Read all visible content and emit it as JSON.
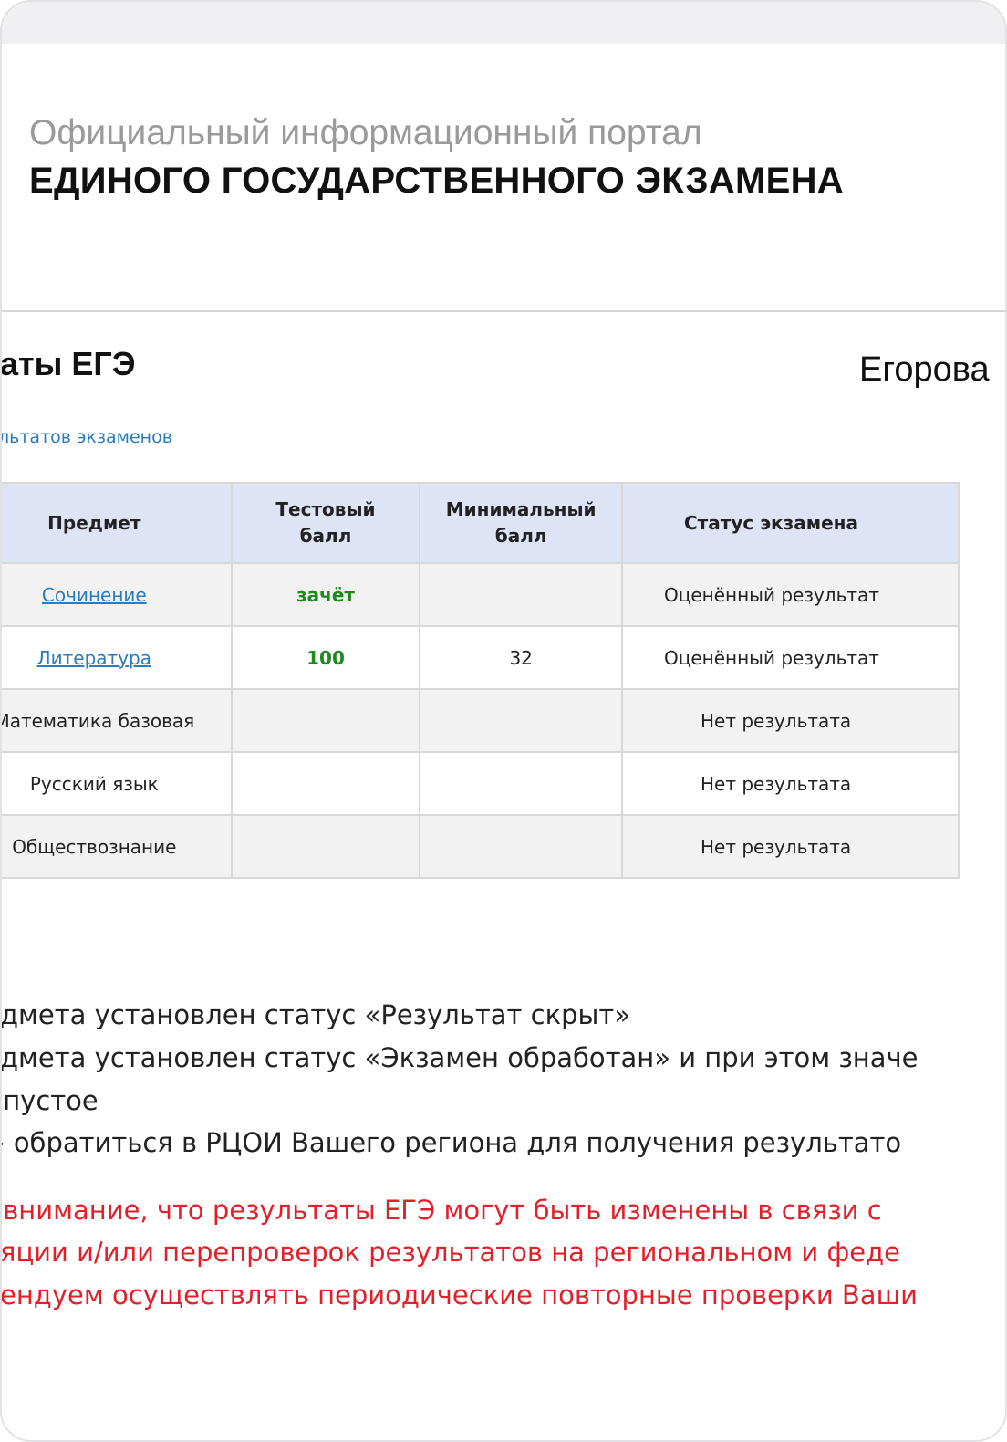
{
  "header": {
    "subtitle": "Официальный информационный портал",
    "title": "ЕДИНОГО ГОСУДАРСТВЕННОГО ЭКЗАМЕНА"
  },
  "page": {
    "title": "аты ЕГЭ",
    "user_name": "Егорова",
    "link": "льтатов экзаменов"
  },
  "table": {
    "headers": [
      "Предмет",
      "Тестовый балл",
      "Минимальный балл",
      "Статус экзамена"
    ],
    "rows": [
      {
        "subject": "Сочинение",
        "is_link": true,
        "score": "зачёт",
        "min": "",
        "status": "Оценённый результат"
      },
      {
        "subject": "Литература",
        "is_link": true,
        "score": "100",
        "min": "32",
        "status": "Оценённый результат"
      },
      {
        "subject": "Математика базовая",
        "is_link": false,
        "score": "",
        "min": "",
        "status": "Нет результата"
      },
      {
        "subject": "Русский язык",
        "is_link": false,
        "score": "",
        "min": "",
        "status": "Нет результата"
      },
      {
        "subject": "Обществознание",
        "is_link": false,
        "score": "",
        "min": "",
        "status": "Нет результата"
      }
    ]
  },
  "notes": [
    "дмета установлен статус «Результат скрыт»",
    "дмета установлен статус «Экзамен обработан» и при этом значе",
    " пустое",
    "› обратиться в РЦОИ Вашего региона для получения результато"
  ],
  "warning": [
    " внимание, что результаты ЕГЭ могут быть изменены в связи с",
    "яции и/или перепроверок результатов на региональном и феде",
    "ендуем осуществлять периодические повторные проверки Ваши"
  ],
  "colors": {
    "link": "#2a7bbf",
    "score": "#1e8a1e",
    "warning": "#e3202a",
    "table_header": "#dce4f6"
  }
}
